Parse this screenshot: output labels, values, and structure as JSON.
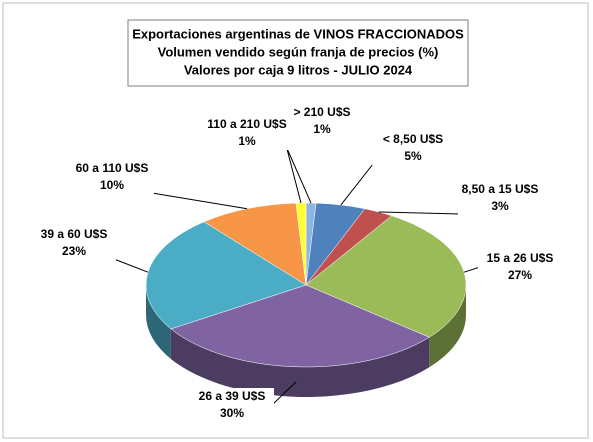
{
  "chart_data": {
    "type": "pie3d",
    "title": [
      "Exportaciones argentinas de VINOS FRACCIONADOS",
      "Volumen vendido según franja de precios (%)",
      "Valores por caja  9 litros -  JULIO 2024"
    ],
    "categories": [
      "> 210 U$S",
      "< 8,50 U$S",
      "8,50 a 15 U$S",
      "15 a 26 U$S",
      "26 a 39 U$S",
      "39 a 60 U$S",
      "60 a 110 U$S",
      "110 a 210 U$S"
    ],
    "values": [
      1,
      5,
      3,
      27,
      30,
      23,
      10,
      1
    ],
    "value_labels": [
      "1%",
      "5%",
      "3%",
      "27%",
      "30%",
      "23%",
      "10%",
      "1%"
    ],
    "colors": [
      "#8db4e2",
      "#4f81bd",
      "#c0504d",
      "#9bbb59",
      "#8064a2",
      "#4bacc6",
      "#f79646",
      "#ffff33"
    ]
  }
}
